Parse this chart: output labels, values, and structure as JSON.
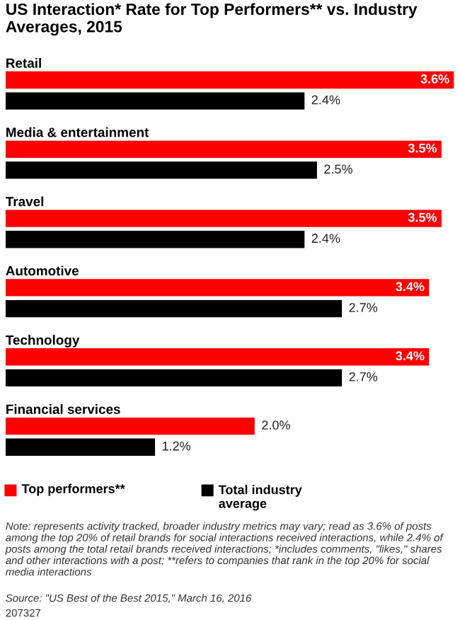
{
  "chart_data": {
    "type": "bar",
    "orientation": "horizontal",
    "title": "US Interaction* Rate for Top Performers** vs. Industry Averages, 2015",
    "categories": [
      "Retail",
      "Media & entertainment",
      "Travel",
      "Automotive",
      "Technology",
      "Financial services"
    ],
    "series": [
      {
        "name": "Top performers**",
        "color": "#ff0000",
        "values": [
          3.6,
          3.5,
          3.5,
          3.4,
          3.4,
          2.0
        ],
        "value_labels": [
          "3.6%",
          "3.5%",
          "3.5%",
          "3.4%",
          "3.4%",
          "2.0%"
        ]
      },
      {
        "name": "Total industry average",
        "color": "#000000",
        "values": [
          2.4,
          2.5,
          2.4,
          2.7,
          2.7,
          1.2
        ],
        "value_labels": [
          "2.4%",
          "2.5%",
          "2.4%",
          "2.7%",
          "2.7%",
          "1.2%"
        ]
      }
    ],
    "legend": "bottom",
    "annotations": [
      "Note: represents activity tracked, broader industry metrics may vary; read as 3.6% of posts among the top 20% of retail brands for social interactions received interactions, while 2.4% of posts among the total retail brands received interactions; *includes comments, \"likes,\" shares and other interactions with a post; **refers to companies that rank in the top 20% for social media interactions",
      "Source: \"US Best of the Best 2015,\" March 16, 2016",
      "207327"
    ]
  }
}
